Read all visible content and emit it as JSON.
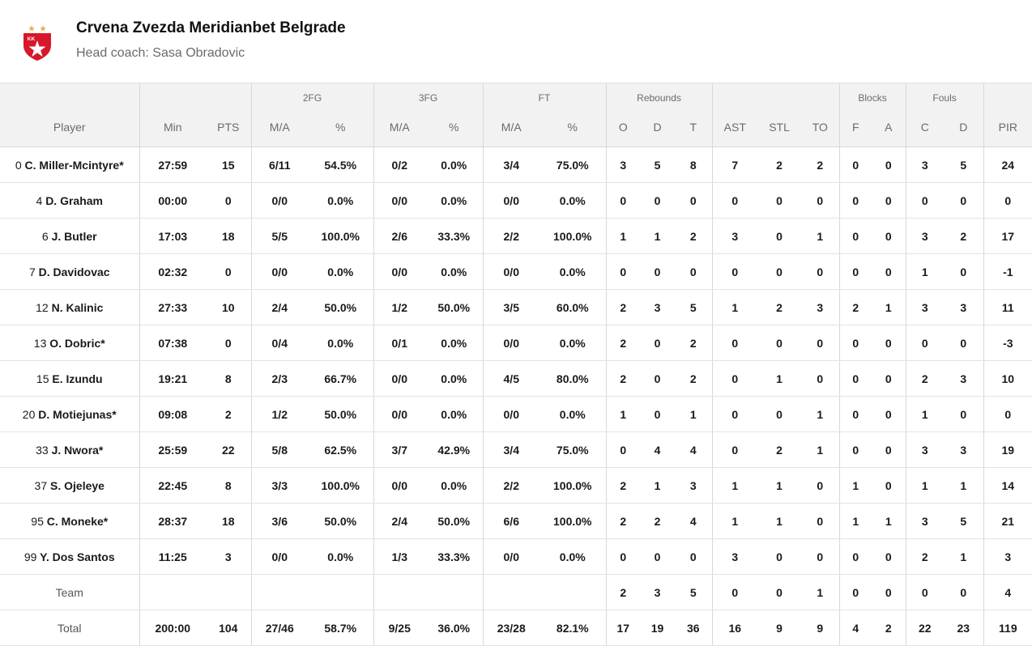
{
  "team": {
    "name": "Crvena Zvezda Meridianbet Belgrade",
    "coach": "Head coach: Sasa Obradovic",
    "logo": {
      "text": "KK",
      "colors": {
        "red": "#d7182a",
        "gold": "#e0b24a"
      }
    }
  },
  "groups": {
    "fg2": "2FG",
    "fg3": "3FG",
    "ft": "FT",
    "reb": "Rebounds",
    "blocks": "Blocks",
    "fouls": "Fouls"
  },
  "headers": {
    "player": "Player",
    "min": "Min",
    "pts": "PTS",
    "fg2_ma": "M/A",
    "fg2_pct": "%",
    "fg3_ma": "M/A",
    "fg3_pct": "%",
    "ft_ma": "M/A",
    "ft_pct": "%",
    "reb_o": "O",
    "reb_d": "D",
    "reb_t": "T",
    "ast": "AST",
    "stl": "STL",
    "to": "TO",
    "blk_f": "F",
    "blk_a": "A",
    "foul_c": "C",
    "foul_d": "D",
    "pir": "PIR"
  },
  "players": [
    {
      "num": "0",
      "name": "C. Miller-Mcintyre*",
      "min": "27:59",
      "pts": "15",
      "fg2_ma": "6/11",
      "fg2_pct": "54.5%",
      "fg3_ma": "0/2",
      "fg3_pct": "0.0%",
      "ft_ma": "3/4",
      "ft_pct": "75.0%",
      "reb_o": "3",
      "reb_d": "5",
      "reb_t": "8",
      "ast": "7",
      "stl": "2",
      "to": "2",
      "blk_f": "0",
      "blk_a": "0",
      "foul_c": "3",
      "foul_d": "5",
      "pir": "24"
    },
    {
      "num": "4",
      "name": "D. Graham",
      "min": "00:00",
      "pts": "0",
      "fg2_ma": "0/0",
      "fg2_pct": "0.0%",
      "fg3_ma": "0/0",
      "fg3_pct": "0.0%",
      "ft_ma": "0/0",
      "ft_pct": "0.0%",
      "reb_o": "0",
      "reb_d": "0",
      "reb_t": "0",
      "ast": "0",
      "stl": "0",
      "to": "0",
      "blk_f": "0",
      "blk_a": "0",
      "foul_c": "0",
      "foul_d": "0",
      "pir": "0"
    },
    {
      "num": "6",
      "name": "J. Butler",
      "min": "17:03",
      "pts": "18",
      "fg2_ma": "5/5",
      "fg2_pct": "100.0%",
      "fg3_ma": "2/6",
      "fg3_pct": "33.3%",
      "ft_ma": "2/2",
      "ft_pct": "100.0%",
      "reb_o": "1",
      "reb_d": "1",
      "reb_t": "2",
      "ast": "3",
      "stl": "0",
      "to": "1",
      "blk_f": "0",
      "blk_a": "0",
      "foul_c": "3",
      "foul_d": "2",
      "pir": "17"
    },
    {
      "num": "7",
      "name": "D. Davidovac",
      "min": "02:32",
      "pts": "0",
      "fg2_ma": "0/0",
      "fg2_pct": "0.0%",
      "fg3_ma": "0/0",
      "fg3_pct": "0.0%",
      "ft_ma": "0/0",
      "ft_pct": "0.0%",
      "reb_o": "0",
      "reb_d": "0",
      "reb_t": "0",
      "ast": "0",
      "stl": "0",
      "to": "0",
      "blk_f": "0",
      "blk_a": "0",
      "foul_c": "1",
      "foul_d": "0",
      "pir": "-1"
    },
    {
      "num": "12",
      "name": "N. Kalinic",
      "min": "27:33",
      "pts": "10",
      "fg2_ma": "2/4",
      "fg2_pct": "50.0%",
      "fg3_ma": "1/2",
      "fg3_pct": "50.0%",
      "ft_ma": "3/5",
      "ft_pct": "60.0%",
      "reb_o": "2",
      "reb_d": "3",
      "reb_t": "5",
      "ast": "1",
      "stl": "2",
      "to": "3",
      "blk_f": "2",
      "blk_a": "1",
      "foul_c": "3",
      "foul_d": "3",
      "pir": "11"
    },
    {
      "num": "13",
      "name": "O. Dobric*",
      "min": "07:38",
      "pts": "0",
      "fg2_ma": "0/4",
      "fg2_pct": "0.0%",
      "fg3_ma": "0/1",
      "fg3_pct": "0.0%",
      "ft_ma": "0/0",
      "ft_pct": "0.0%",
      "reb_o": "2",
      "reb_d": "0",
      "reb_t": "2",
      "ast": "0",
      "stl": "0",
      "to": "0",
      "blk_f": "0",
      "blk_a": "0",
      "foul_c": "0",
      "foul_d": "0",
      "pir": "-3"
    },
    {
      "num": "15",
      "name": "E. Izundu",
      "min": "19:21",
      "pts": "8",
      "fg2_ma": "2/3",
      "fg2_pct": "66.7%",
      "fg3_ma": "0/0",
      "fg3_pct": "0.0%",
      "ft_ma": "4/5",
      "ft_pct": "80.0%",
      "reb_o": "2",
      "reb_d": "0",
      "reb_t": "2",
      "ast": "0",
      "stl": "1",
      "to": "0",
      "blk_f": "0",
      "blk_a": "0",
      "foul_c": "2",
      "foul_d": "3",
      "pir": "10"
    },
    {
      "num": "20",
      "name": "D. Motiejunas*",
      "min": "09:08",
      "pts": "2",
      "fg2_ma": "1/2",
      "fg2_pct": "50.0%",
      "fg3_ma": "0/0",
      "fg3_pct": "0.0%",
      "ft_ma": "0/0",
      "ft_pct": "0.0%",
      "reb_o": "1",
      "reb_d": "0",
      "reb_t": "1",
      "ast": "0",
      "stl": "0",
      "to": "1",
      "blk_f": "0",
      "blk_a": "0",
      "foul_c": "1",
      "foul_d": "0",
      "pir": "0"
    },
    {
      "num": "33",
      "name": "J. Nwora*",
      "min": "25:59",
      "pts": "22",
      "fg2_ma": "5/8",
      "fg2_pct": "62.5%",
      "fg3_ma": "3/7",
      "fg3_pct": "42.9%",
      "ft_ma": "3/4",
      "ft_pct": "75.0%",
      "reb_o": "0",
      "reb_d": "4",
      "reb_t": "4",
      "ast": "0",
      "stl": "2",
      "to": "1",
      "blk_f": "0",
      "blk_a": "0",
      "foul_c": "3",
      "foul_d": "3",
      "pir": "19"
    },
    {
      "num": "37",
      "name": "S. Ojeleye",
      "min": "22:45",
      "pts": "8",
      "fg2_ma": "3/3",
      "fg2_pct": "100.0%",
      "fg3_ma": "0/0",
      "fg3_pct": "0.0%",
      "ft_ma": "2/2",
      "ft_pct": "100.0%",
      "reb_o": "2",
      "reb_d": "1",
      "reb_t": "3",
      "ast": "1",
      "stl": "1",
      "to": "0",
      "blk_f": "1",
      "blk_a": "0",
      "foul_c": "1",
      "foul_d": "1",
      "pir": "14"
    },
    {
      "num": "95",
      "name": "C. Moneke*",
      "min": "28:37",
      "pts": "18",
      "fg2_ma": "3/6",
      "fg2_pct": "50.0%",
      "fg3_ma": "2/4",
      "fg3_pct": "50.0%",
      "ft_ma": "6/6",
      "ft_pct": "100.0%",
      "reb_o": "2",
      "reb_d": "2",
      "reb_t": "4",
      "ast": "1",
      "stl": "1",
      "to": "0",
      "blk_f": "1",
      "blk_a": "1",
      "foul_c": "3",
      "foul_d": "5",
      "pir": "21"
    },
    {
      "num": "99",
      "name": "Y. Dos Santos",
      "min": "11:25",
      "pts": "3",
      "fg2_ma": "0/0",
      "fg2_pct": "0.0%",
      "fg3_ma": "1/3",
      "fg3_pct": "33.3%",
      "ft_ma": "0/0",
      "ft_pct": "0.0%",
      "reb_o": "0",
      "reb_d": "0",
      "reb_t": "0",
      "ast": "3",
      "stl": "0",
      "to": "0",
      "blk_f": "0",
      "blk_a": "0",
      "foul_c": "2",
      "foul_d": "1",
      "pir": "3"
    }
  ],
  "team_row": {
    "label": "Team",
    "min": "",
    "pts": "",
    "fg2_ma": "",
    "fg2_pct": "",
    "fg3_ma": "",
    "fg3_pct": "",
    "ft_ma": "",
    "ft_pct": "",
    "reb_o": "2",
    "reb_d": "3",
    "reb_t": "5",
    "ast": "0",
    "stl": "0",
    "to": "1",
    "blk_f": "0",
    "blk_a": "0",
    "foul_c": "0",
    "foul_d": "0",
    "pir": "4"
  },
  "total_row": {
    "label": "Total",
    "min": "200:00",
    "pts": "104",
    "fg2_ma": "27/46",
    "fg2_pct": "58.7%",
    "fg3_ma": "9/25",
    "fg3_pct": "36.0%",
    "ft_ma": "23/28",
    "ft_pct": "82.1%",
    "reb_o": "17",
    "reb_d": "19",
    "reb_t": "36",
    "ast": "16",
    "stl": "9",
    "to": "9",
    "blk_f": "4",
    "blk_a": "2",
    "foul_c": "22",
    "foul_d": "23",
    "pir": "119"
  }
}
